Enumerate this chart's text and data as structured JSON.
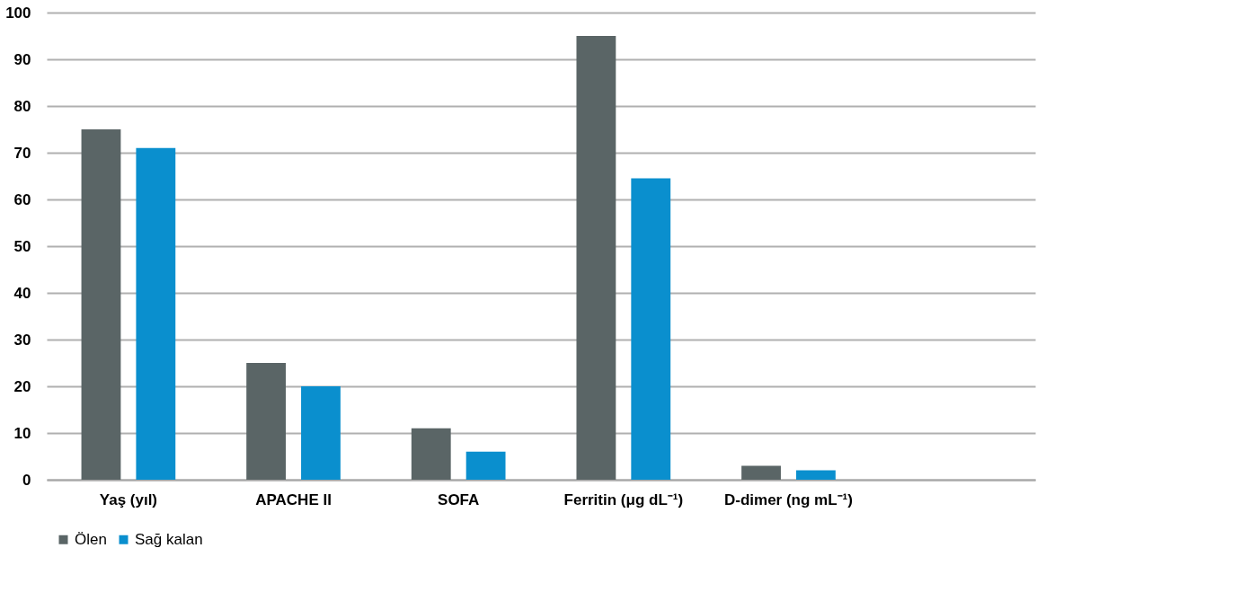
{
  "chart_data": {
    "type": "bar",
    "categories": [
      "Yaş (yıl)",
      "APACHE II",
      "SOFA",
      "Ferritin (μg dL⁻¹)",
      "D-dimer (ng mL⁻¹)",
      null
    ],
    "series": [
      {
        "name": "Ölen",
        "color": "#5a6566",
        "values": [
          75,
          25,
          11,
          95,
          3,
          null
        ]
      },
      {
        "name": "Sağ kalan",
        "color": "#0a8fce",
        "values": [
          71,
          20,
          6,
          64.5,
          2,
          null
        ]
      }
    ],
    "ylim": [
      0,
      100
    ],
    "yticks": [
      0,
      10,
      20,
      30,
      40,
      50,
      60,
      70,
      80,
      90,
      100
    ],
    "grid": "y",
    "legend": "bottom"
  }
}
